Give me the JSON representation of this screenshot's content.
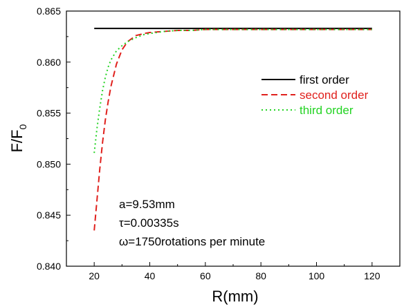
{
  "chart_data": {
    "type": "line",
    "xlabel": "R(mm)",
    "ylabel_main": "F/F",
    "ylabel_sub": "0",
    "xlim": [
      10,
      130
    ],
    "ylim": [
      0.84,
      0.865
    ],
    "xticks": [
      20,
      40,
      60,
      80,
      100,
      120
    ],
    "yticks": [
      0.84,
      0.845,
      0.85,
      0.855,
      0.86,
      0.865
    ],
    "ytick_labels": [
      "0.840",
      "0.845",
      "0.850",
      "0.855",
      "0.860",
      "0.865"
    ],
    "legend_position": "top-right",
    "series": [
      {
        "name": "first order",
        "color": "#000000",
        "style": "solid",
        "x": [
          20,
          120
        ],
        "y": [
          0.8633,
          0.8633
        ]
      },
      {
        "name": "second order",
        "color": "#e0201c",
        "style": "dashed",
        "x": [
          20,
          21,
          22,
          23,
          24,
          25,
          26,
          28,
          30,
          32,
          35,
          38,
          40,
          45,
          50,
          55,
          60,
          70,
          80,
          90,
          100,
          110,
          120
        ],
        "y": [
          0.8435,
          0.8465,
          0.8495,
          0.8521,
          0.8543,
          0.8561,
          0.8576,
          0.8598,
          0.8612,
          0.862,
          0.8626,
          0.8628,
          0.8629,
          0.863,
          0.8631,
          0.8631,
          0.8632,
          0.8632,
          0.8632,
          0.8632,
          0.8632,
          0.8632,
          0.8632
        ]
      },
      {
        "name": "third order",
        "color": "#22d322",
        "style": "dotted",
        "x": [
          20,
          21,
          22,
          23,
          24,
          25,
          26,
          28,
          30,
          32,
          35,
          38,
          40,
          45,
          50,
          55,
          60,
          70,
          80,
          90,
          100,
          110,
          120
        ],
        "y": [
          0.8511,
          0.8535,
          0.8555,
          0.8572,
          0.8585,
          0.8595,
          0.8602,
          0.8611,
          0.8616,
          0.862,
          0.8624,
          0.8627,
          0.8628,
          0.863,
          0.8631,
          0.8631,
          0.8632,
          0.8632,
          0.8632,
          0.8632,
          0.8632,
          0.8632,
          0.8632
        ]
      }
    ],
    "annotations": [
      "a=9.53mm",
      "τ=0.00335s",
      "ω=1750rotations per minute"
    ]
  }
}
